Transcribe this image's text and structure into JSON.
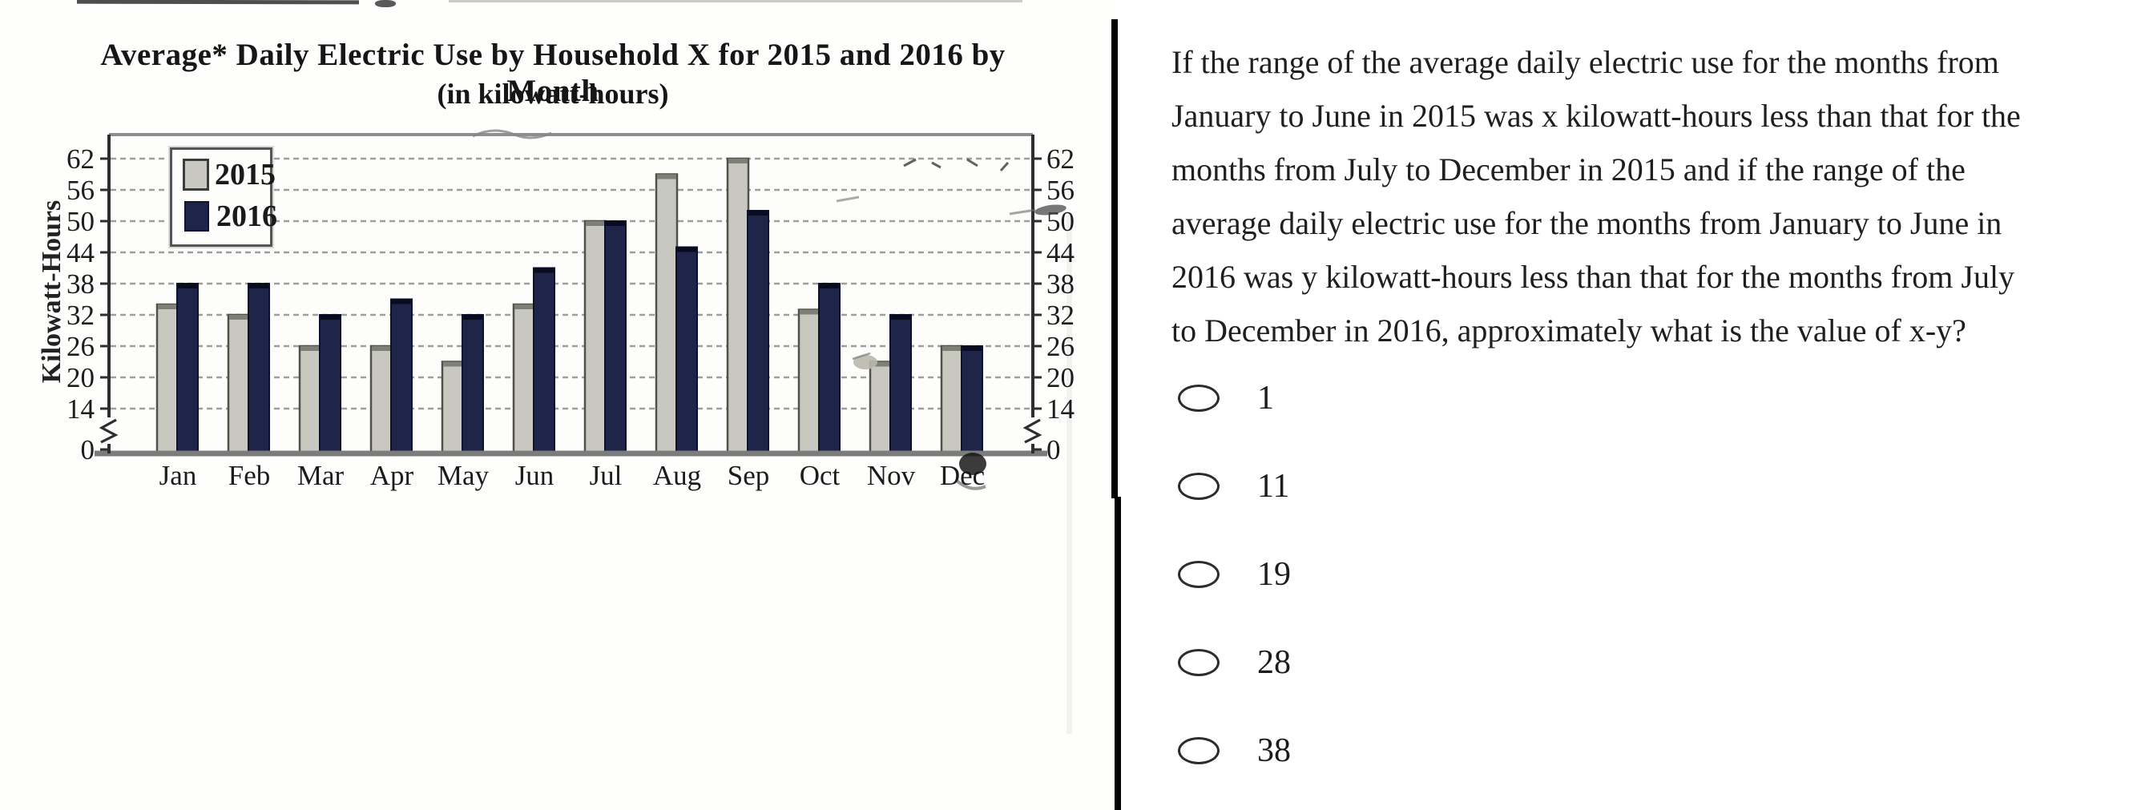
{
  "chart_panel": {
    "chart_data": {
      "type": "bar",
      "title": "Average* Daily Electric Use by Household X for 2015 and 2016 by Month",
      "subtitle": "(in kilowatt-hours)",
      "ylabel": "Kilowatt-Hours",
      "categories": [
        "Jan",
        "Feb",
        "Mar",
        "Apr",
        "May",
        "Jun",
        "Jul",
        "Aug",
        "Sep",
        "Oct",
        "Nov",
        "Dec"
      ],
      "series": [
        {
          "name": "2015",
          "color": "#c9c8c0",
          "values": [
            34,
            32,
            26,
            26,
            23,
            34,
            50,
            59,
            62,
            33,
            23,
            26
          ]
        },
        {
          "name": "2016",
          "color": "#1f2449",
          "values": [
            38,
            38,
            32,
            35,
            32,
            41,
            50,
            45,
            52,
            38,
            32,
            26
          ]
        }
      ],
      "yticks": [
        62,
        56,
        50,
        44,
        38,
        32,
        26,
        20,
        14,
        0
      ],
      "ylim": [
        0,
        66
      ],
      "axis_break_between": [
        0,
        14
      ],
      "grid": "horizontal-dashed",
      "legend_position": "top-left",
      "dual_y_axis": true
    }
  },
  "question_panel": {
    "lines": [
      "If the range of the average daily electric use for the months from",
      "January to June in 2015 was x kilowatt-hours less than that for the",
      "months from July to December in 2015 and if the range of the",
      "average daily electric use for the months from January to June in",
      "2016 was y kilowatt-hours less than that for the months from July",
      "to December in 2016, approximately what is the value of x-y?"
    ],
    "options": [
      "1",
      "11",
      "19",
      "28",
      "38"
    ]
  }
}
